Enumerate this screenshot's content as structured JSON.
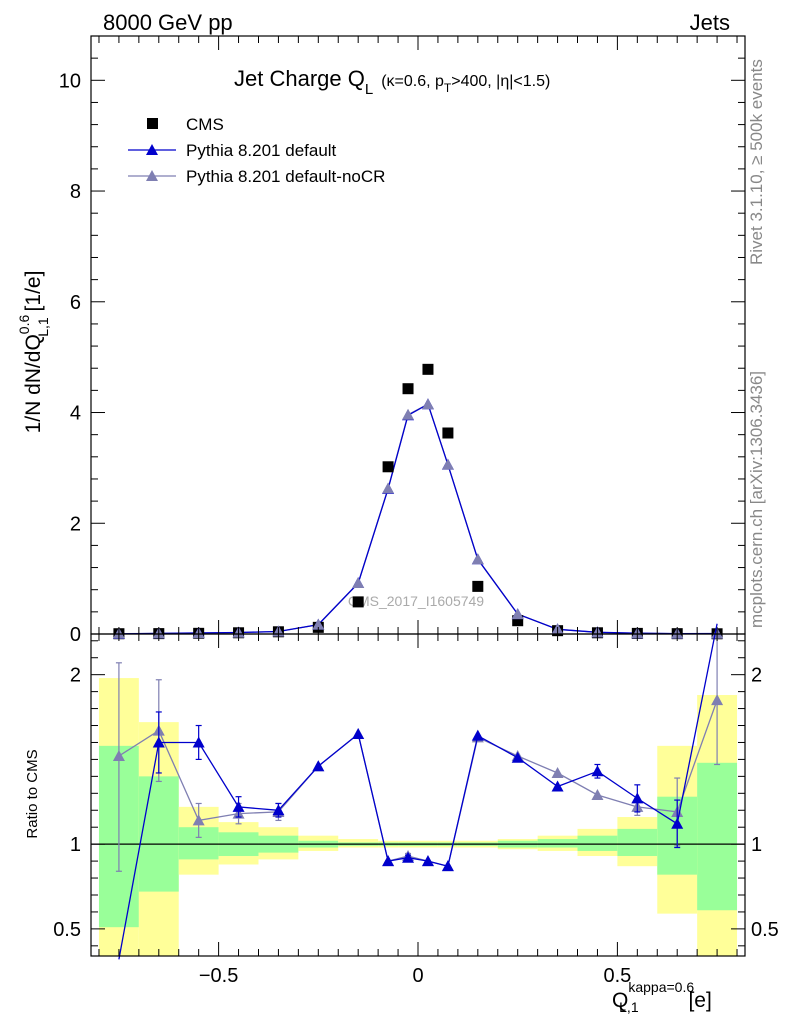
{
  "header": {
    "left": "8000 GeV pp",
    "right": "Jets"
  },
  "side_labels": {
    "rivet": "Rivet 3.1.10, ≥ 500k events",
    "mcplots": "mcplots.cern.ch [arXiv:1306.3436]"
  },
  "watermark": "CMS_2017_I1605749",
  "colors": {
    "cms": "#000000",
    "pythia_default": "#0000cc",
    "pythia_nocr": "#7f7fb2",
    "band_inner": "#99ff99",
    "band_outer": "#ffff99"
  },
  "chart_data": [
    {
      "type": "scatter",
      "title": {
        "main": "Jet Charge Q",
        "main_sub": "L",
        "details": "(κ=0.6, p",
        "details_sub": "T",
        "details_tail": ">400, |η|<1.5)"
      },
      "ylabel": {
        "pre": "1/N dN/dQ",
        "sup": "0.6",
        "sub": "L,1",
        "post": " [1/e]"
      },
      "xlim": [
        -0.82,
        0.82
      ],
      "ylim": [
        0,
        10.8
      ],
      "yticks": [
        0,
        2,
        4,
        6,
        8,
        10
      ],
      "ytick_labels": [
        "0",
        "2",
        "4",
        "6",
        "8",
        "10"
      ],
      "x": [
        -0.75,
        -0.65,
        -0.55,
        -0.45,
        -0.35,
        -0.25,
        -0.15,
        -0.075,
        -0.025,
        0.025,
        0.075,
        0.15,
        0.25,
        0.35,
        0.45,
        0.55,
        0.65,
        0.75
      ],
      "legend": {
        "position": "top-left"
      },
      "series": [
        {
          "name": "CMS",
          "marker": "square",
          "values": [
            0.005,
            0.007,
            0.012,
            0.022,
            0.04,
            0.12,
            0.58,
            3.02,
            4.43,
            4.78,
            3.63,
            0.86,
            0.24,
            0.06,
            0.022,
            0.011,
            0.006,
            0.004
          ]
        },
        {
          "name": "Pythia 8.201 default",
          "marker": "triangle",
          "values": [
            0.002,
            0.011,
            0.019,
            0.027,
            0.046,
            0.17,
            0.92,
            2.62,
            3.95,
            4.15,
            3.06,
            1.35,
            0.36,
            0.085,
            0.031,
            0.014,
            0.007,
            0.009
          ]
        },
        {
          "name": "Pythia 8.201 default-noCR",
          "marker": "triangle",
          "values": [
            0.006,
            0.011,
            0.014,
            0.025,
            0.046,
            0.17,
            0.92,
            2.63,
            3.96,
            4.15,
            3.06,
            1.35,
            0.36,
            0.085,
            0.029,
            0.013,
            0.006,
            0.007
          ]
        }
      ]
    },
    {
      "type": "scatter",
      "ylabel": "Ratio to CMS",
      "xlabel": {
        "pre": "Q",
        "sup": "kappa=0.6",
        "sub": "L,1",
        "post": " [e]"
      },
      "xlim": [
        -0.82,
        0.82
      ],
      "ylim": [
        0.34,
        2.24
      ],
      "yticks": [
        0.5,
        1,
        2
      ],
      "ytick_labels": [
        "0.5",
        "1",
        "2"
      ],
      "xticks": [
        -0.5,
        0,
        0.5
      ],
      "xtick_labels": [
        "−0.5",
        "0",
        "0.5"
      ],
      "x": [
        -0.75,
        -0.65,
        -0.55,
        -0.45,
        -0.35,
        -0.25,
        -0.15,
        -0.075,
        -0.025,
        0.025,
        0.075,
        0.15,
        0.25,
        0.35,
        0.45,
        0.55,
        0.65,
        0.75
      ],
      "bins": [
        {
          "lo": -0.8,
          "hi": -0.7,
          "inner": [
            0.51,
            1.58
          ],
          "outer": [
            0.3,
            1.98
          ]
        },
        {
          "lo": -0.7,
          "hi": -0.6,
          "inner": [
            0.72,
            1.4
          ],
          "outer": [
            0.34,
            1.72
          ]
        },
        {
          "lo": -0.6,
          "hi": -0.5,
          "inner": [
            0.91,
            1.1
          ],
          "outer": [
            0.82,
            1.22
          ]
        },
        {
          "lo": -0.5,
          "hi": -0.4,
          "inner": [
            0.93,
            1.07
          ],
          "outer": [
            0.88,
            1.13
          ]
        },
        {
          "lo": -0.4,
          "hi": -0.3,
          "inner": [
            0.95,
            1.05
          ],
          "outer": [
            0.91,
            1.1
          ]
        },
        {
          "lo": -0.3,
          "hi": -0.2,
          "inner": [
            0.98,
            1.02
          ],
          "outer": [
            0.96,
            1.05
          ]
        },
        {
          "lo": -0.2,
          "hi": -0.1,
          "inner": [
            0.99,
            1.01
          ],
          "outer": [
            0.98,
            1.03
          ]
        },
        {
          "lo": -0.1,
          "hi": -0.05,
          "inner": [
            0.99,
            1.01
          ],
          "outer": [
            0.98,
            1.02
          ]
        },
        {
          "lo": -0.05,
          "hi": 0,
          "inner": [
            0.99,
            1.01
          ],
          "outer": [
            0.98,
            1.02
          ]
        },
        {
          "lo": 0,
          "hi": 0.05,
          "inner": [
            0.99,
            1.01
          ],
          "outer": [
            0.98,
            1.02
          ]
        },
        {
          "lo": 0.05,
          "hi": 0.1,
          "inner": [
            0.99,
            1.01
          ],
          "outer": [
            0.98,
            1.02
          ]
        },
        {
          "lo": 0.1,
          "hi": 0.2,
          "inner": [
            0.99,
            1.01
          ],
          "outer": [
            0.98,
            1.02
          ]
        },
        {
          "lo": 0.2,
          "hi": 0.3,
          "inner": [
            0.98,
            1.02
          ],
          "outer": [
            0.97,
            1.03
          ]
        },
        {
          "lo": 0.3,
          "hi": 0.4,
          "inner": [
            0.98,
            1.03
          ],
          "outer": [
            0.96,
            1.05
          ]
        },
        {
          "lo": 0.4,
          "hi": 0.5,
          "inner": [
            0.96,
            1.05
          ],
          "outer": [
            0.93,
            1.09
          ]
        },
        {
          "lo": 0.5,
          "hi": 0.6,
          "inner": [
            0.93,
            1.09
          ],
          "outer": [
            0.87,
            1.16
          ]
        },
        {
          "lo": 0.6,
          "hi": 0.7,
          "inner": [
            0.82,
            1.28
          ],
          "outer": [
            0.59,
            1.58
          ]
        },
        {
          "lo": 0.7,
          "hi": 0.8,
          "inner": [
            0.61,
            1.48
          ],
          "outer": [
            0.3,
            1.88
          ]
        }
      ],
      "series": [
        {
          "name": "Pythia 8.201 default",
          "values": [
            0.3,
            1.6,
            1.6,
            1.22,
            1.2,
            1.46,
            1.65,
            0.9,
            0.92,
            0.9,
            0.87,
            1.64,
            1.51,
            1.34,
            1.43,
            1.27,
            1.12,
            2.3
          ],
          "err_low": [
            0,
            0.18,
            0.1,
            0.06,
            0.04,
            0,
            0,
            0,
            0.015,
            0,
            0,
            0,
            0,
            0,
            0.04,
            0.08,
            0.14,
            0
          ],
          "err_high": [
            0,
            0.18,
            0.1,
            0.06,
            0.04,
            0,
            0,
            0,
            0.015,
            0,
            0,
            0,
            0,
            0,
            0.04,
            0.08,
            0.14,
            0
          ]
        },
        {
          "name": "Pythia 8.201 default-noCR",
          "values": [
            1.52,
            1.67,
            1.14,
            1.18,
            1.19,
            1.46,
            1.65,
            0.9,
            0.93,
            0.9,
            0.87,
            1.63,
            1.52,
            1.42,
            1.29,
            1.22,
            1.19,
            1.85
          ],
          "err_low": [
            0.68,
            0.3,
            0.1,
            0.06,
            0.05,
            0,
            0,
            0,
            0.015,
            0,
            0,
            0,
            0,
            0,
            0,
            0.05,
            0.2,
            0.38
          ],
          "err_high": [
            0.55,
            0.3,
            0.1,
            0.06,
            0.05,
            0,
            0,
            0,
            0.015,
            0,
            0,
            0,
            0,
            0,
            0,
            0.05,
            0.2,
            0.38
          ]
        }
      ]
    }
  ]
}
